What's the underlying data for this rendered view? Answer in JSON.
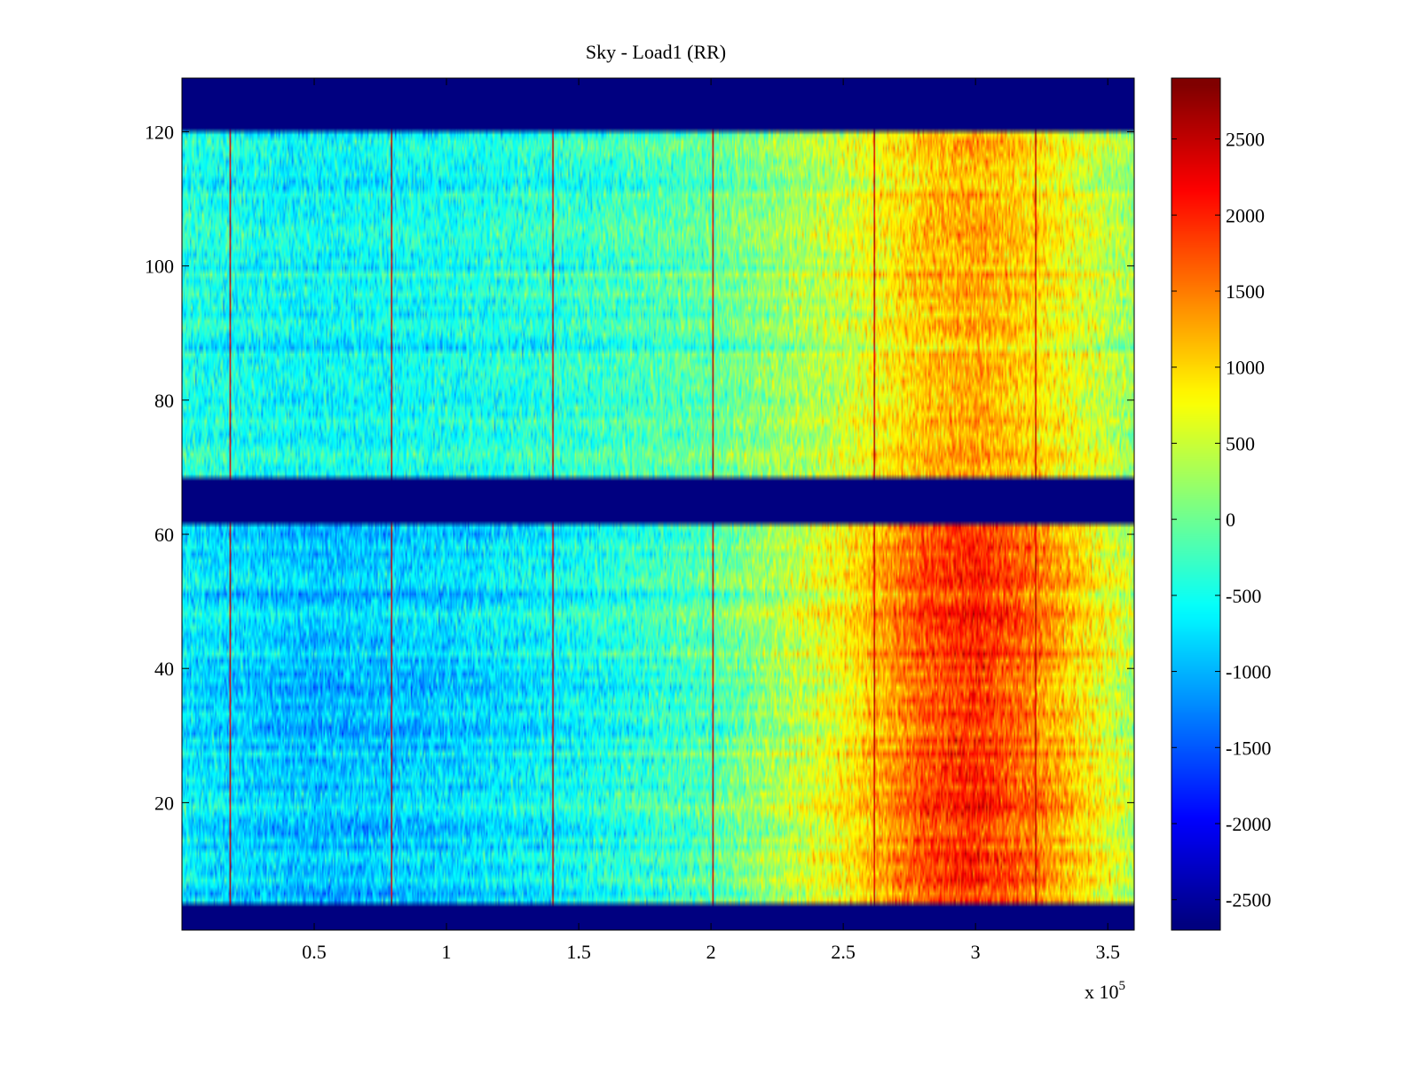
{
  "chart_data": {
    "type": "heatmap",
    "title": "Sky - Load1 (RR)",
    "xlabel": "",
    "ylabel": "",
    "x_exponent_label": "x 10",
    "x_exponent_power": "5",
    "xlim": [
      0,
      3.6
    ],
    "ylim": [
      1,
      128
    ],
    "x_ticks": [
      {
        "value": 0.5,
        "label": "0.5"
      },
      {
        "value": 1,
        "label": "1"
      },
      {
        "value": 1.5,
        "label": "1.5"
      },
      {
        "value": 2,
        "label": "2"
      },
      {
        "value": 2.5,
        "label": "2.5"
      },
      {
        "value": 3,
        "label": "3"
      },
      {
        "value": 3.5,
        "label": "3.5"
      }
    ],
    "y_ticks": [
      {
        "value": 20,
        "label": "20"
      },
      {
        "value": 40,
        "label": "40"
      },
      {
        "value": 60,
        "label": "60"
      },
      {
        "value": 80,
        "label": "80"
      },
      {
        "value": 100,
        "label": "100"
      },
      {
        "value": 120,
        "label": "120"
      }
    ],
    "colorbar": {
      "colormap": "jet",
      "range": [
        -2700,
        2900
      ],
      "ticks": [
        {
          "value": 2500,
          "label": "2500"
        },
        {
          "value": 2000,
          "label": "2000"
        },
        {
          "value": 1500,
          "label": "1500"
        },
        {
          "value": 1000,
          "label": "1000"
        },
        {
          "value": 500,
          "label": "500"
        },
        {
          "value": 0,
          "label": "0"
        },
        {
          "value": -500,
          "label": "-500"
        },
        {
          "value": -1000,
          "label": "-1000"
        },
        {
          "value": -1500,
          "label": "-1500"
        },
        {
          "value": -2000,
          "label": "-2000"
        },
        {
          "value": -2500,
          "label": "-2500"
        }
      ]
    },
    "flagged_row_bands": [
      {
        "y_from": 1,
        "y_to": 4,
        "value": -2700
      },
      {
        "y_from": 62,
        "y_to": 68,
        "value": -2700
      },
      {
        "y_from": 121,
        "y_to": 128,
        "value": -2700
      }
    ],
    "vertical_stripes_x": [
      0.18,
      0.79,
      1.4,
      2.01,
      2.62,
      3.23
    ],
    "stripe_value": 2800,
    "background_trend": [
      {
        "x": 0.0,
        "value": -500
      },
      {
        "x": 0.5,
        "value": -700
      },
      {
        "x": 1.0,
        "value": -600
      },
      {
        "x": 1.5,
        "value": -400
      },
      {
        "x": 2.0,
        "value": -100
      },
      {
        "x": 2.5,
        "value": 600
      },
      {
        "x": 2.8,
        "value": 1300
      },
      {
        "x": 3.0,
        "value": 1500
      },
      {
        "x": 3.2,
        "value": 1200
      },
      {
        "x": 3.6,
        "value": 300
      }
    ],
    "grid": false,
    "legend": "colorbar-right"
  }
}
